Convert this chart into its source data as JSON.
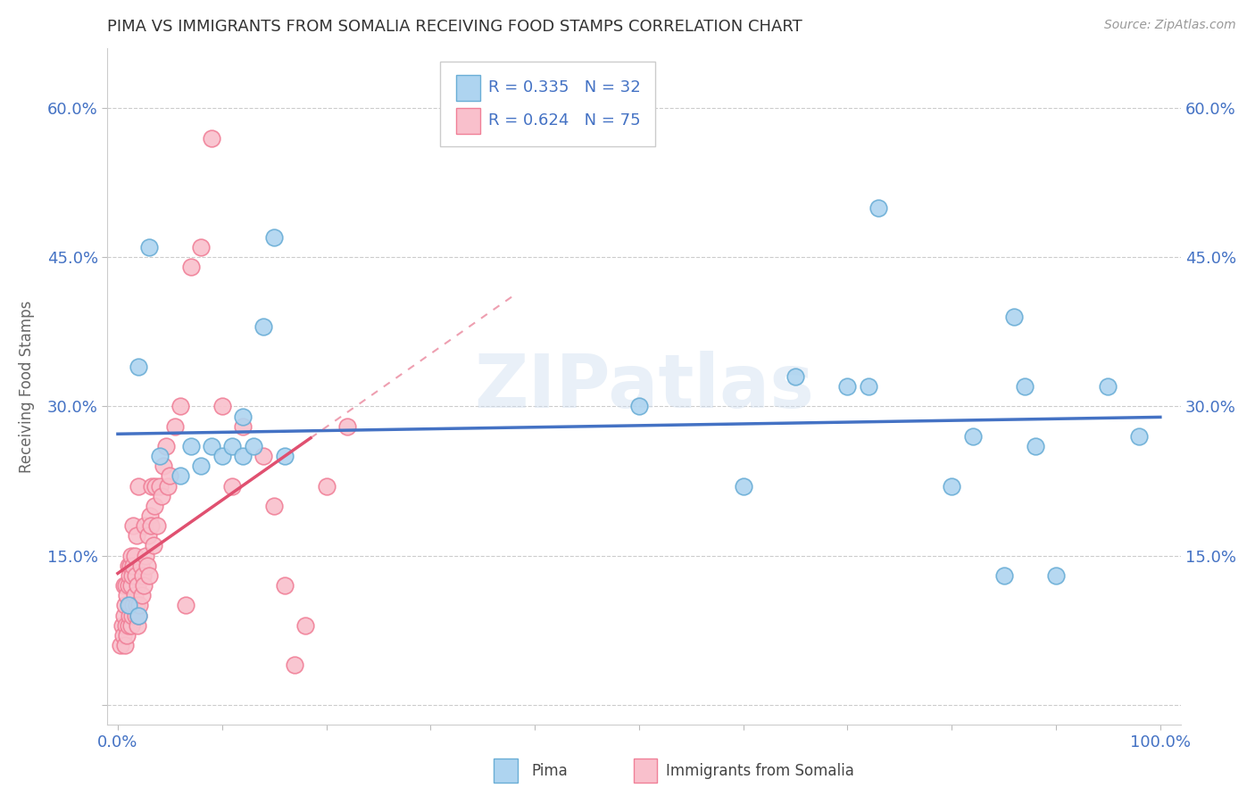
{
  "title": "PIMA VS IMMIGRANTS FROM SOMALIA RECEIVING FOOD STAMPS CORRELATION CHART",
  "source": "Source: ZipAtlas.com",
  "ylabel": "Receiving Food Stamps",
  "xlim": [
    -0.01,
    1.02
  ],
  "ylim": [
    -0.02,
    0.66
  ],
  "xticks": [
    0.0,
    0.1,
    0.2,
    0.3,
    0.4,
    0.5,
    0.6,
    0.7,
    0.8,
    0.9,
    1.0
  ],
  "xticklabels": [
    "0.0%",
    "",
    "",
    "",
    "",
    "",
    "",
    "",
    "",
    "",
    "100.0%"
  ],
  "yticks": [
    0.0,
    0.15,
    0.3,
    0.45,
    0.6
  ],
  "yticklabels": [
    "",
    "15.0%",
    "30.0%",
    "45.0%",
    "60.0%"
  ],
  "pima_color": "#AED4F0",
  "somalia_color": "#F9C0CC",
  "pima_edge": "#6AAED6",
  "somalia_edge": "#F08098",
  "trendline_pima": "#4472C4",
  "trendline_somalia": "#E05070",
  "R_pima": 0.335,
  "N_pima": 32,
  "R_somalia": 0.624,
  "N_somalia": 75,
  "legend_label_pima": "Pima",
  "legend_label_somalia": "Immigrants from Somalia",
  "watermark": "ZIPatlas",
  "pima_x": [
    0.01,
    0.02,
    0.02,
    0.03,
    0.04,
    0.06,
    0.07,
    0.08,
    0.09,
    0.1,
    0.11,
    0.12,
    0.12,
    0.13,
    0.14,
    0.15,
    0.16,
    0.5,
    0.6,
    0.65,
    0.7,
    0.72,
    0.73,
    0.8,
    0.82,
    0.85,
    0.86,
    0.87,
    0.88,
    0.9,
    0.95,
    0.98
  ],
  "pima_y": [
    0.1,
    0.34,
    0.09,
    0.46,
    0.25,
    0.23,
    0.26,
    0.24,
    0.26,
    0.25,
    0.26,
    0.29,
    0.25,
    0.26,
    0.38,
    0.47,
    0.25,
    0.3,
    0.22,
    0.33,
    0.32,
    0.32,
    0.5,
    0.22,
    0.27,
    0.13,
    0.39,
    0.32,
    0.26,
    0.13,
    0.32,
    0.27
  ],
  "somalia_x": [
    0.003,
    0.004,
    0.005,
    0.006,
    0.006,
    0.007,
    0.007,
    0.008,
    0.008,
    0.009,
    0.009,
    0.01,
    0.01,
    0.01,
    0.011,
    0.011,
    0.012,
    0.012,
    0.013,
    0.013,
    0.013,
    0.014,
    0.014,
    0.015,
    0.015,
    0.015,
    0.016,
    0.016,
    0.017,
    0.017,
    0.018,
    0.018,
    0.019,
    0.019,
    0.02,
    0.02,
    0.021,
    0.022,
    0.023,
    0.024,
    0.025,
    0.026,
    0.027,
    0.028,
    0.029,
    0.03,
    0.031,
    0.032,
    0.033,
    0.034,
    0.035,
    0.036,
    0.038,
    0.04,
    0.042,
    0.044,
    0.046,
    0.048,
    0.05,
    0.055,
    0.06,
    0.065,
    0.07,
    0.08,
    0.09,
    0.1,
    0.11,
    0.12,
    0.14,
    0.15,
    0.16,
    0.17,
    0.18,
    0.2,
    0.22
  ],
  "somalia_y": [
    0.06,
    0.08,
    0.07,
    0.09,
    0.12,
    0.06,
    0.1,
    0.08,
    0.12,
    0.07,
    0.11,
    0.08,
    0.12,
    0.14,
    0.09,
    0.13,
    0.1,
    0.14,
    0.08,
    0.12,
    0.15,
    0.09,
    0.13,
    0.1,
    0.14,
    0.18,
    0.11,
    0.15,
    0.09,
    0.13,
    0.1,
    0.17,
    0.08,
    0.12,
    0.09,
    0.22,
    0.1,
    0.14,
    0.11,
    0.13,
    0.12,
    0.18,
    0.15,
    0.14,
    0.17,
    0.13,
    0.19,
    0.18,
    0.22,
    0.16,
    0.2,
    0.22,
    0.18,
    0.22,
    0.21,
    0.24,
    0.26,
    0.22,
    0.23,
    0.28,
    0.3,
    0.1,
    0.44,
    0.46,
    0.57,
    0.3,
    0.22,
    0.28,
    0.25,
    0.2,
    0.12,
    0.04,
    0.08,
    0.22,
    0.28
  ]
}
